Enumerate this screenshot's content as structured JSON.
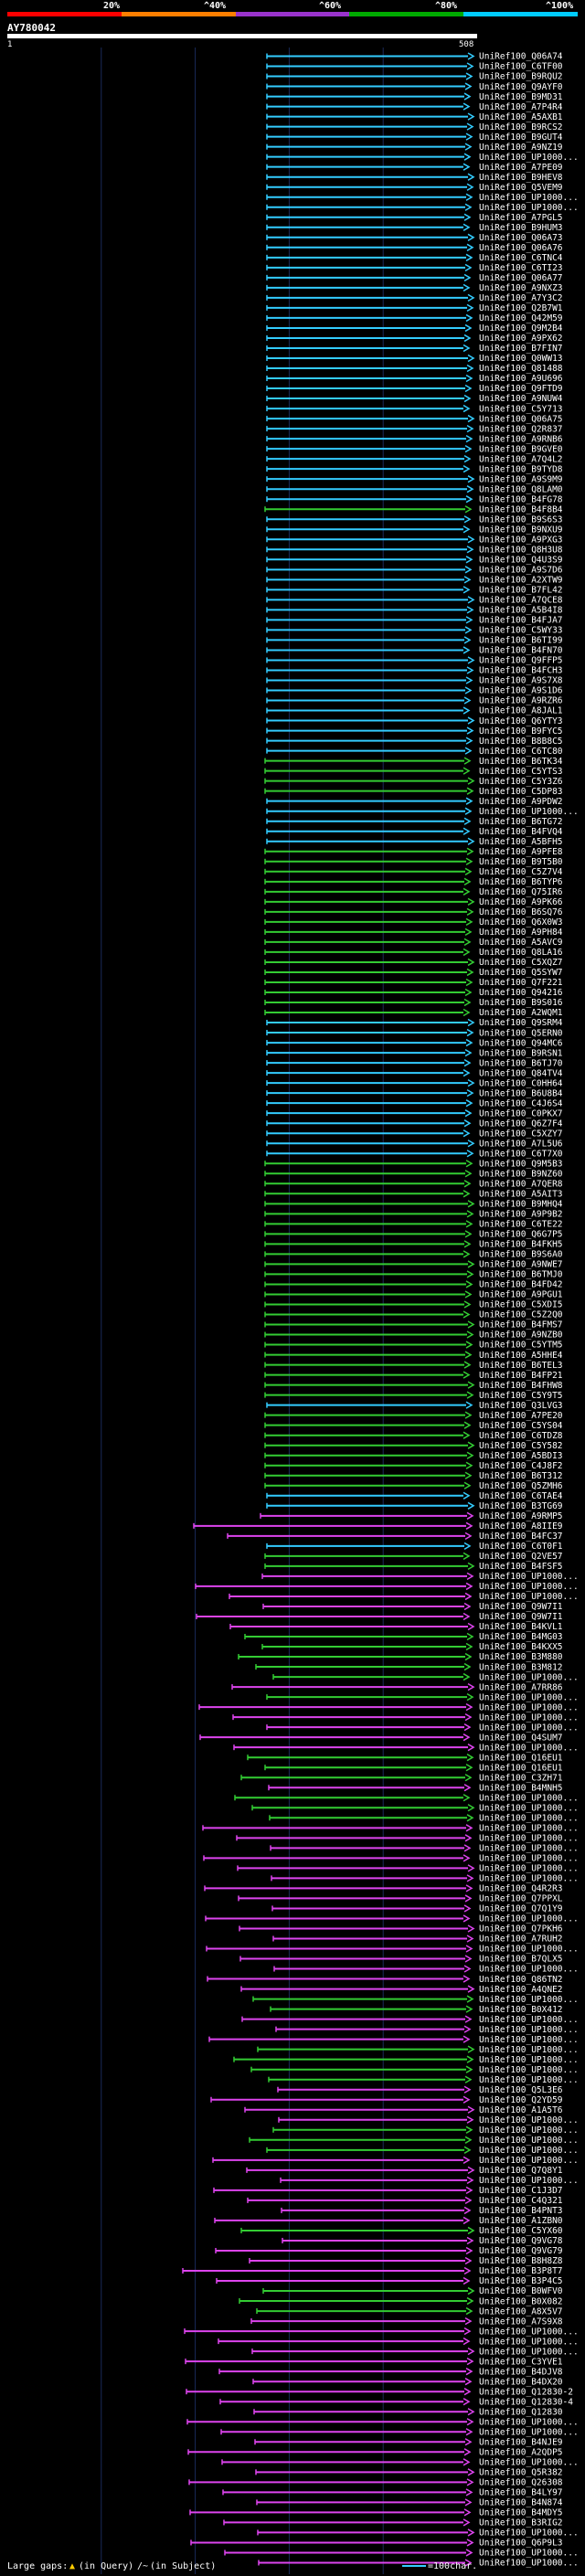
{
  "scale": {
    "labels": [
      "20%",
      "^40%",
      "^60%",
      "^80%",
      "^100%"
    ],
    "colors": [
      "#ff0000",
      "#ff7f00",
      "#9933cc",
      "#00aa00",
      "#00ccff"
    ]
  },
  "query": {
    "id": "AY780042",
    "start": "1",
    "end": "508"
  },
  "colors": {
    "cyan": "#33ccff",
    "green": "#33cc33",
    "magenta": "#dd44ee",
    "background": "#000000",
    "grid": "#1a2a5a"
  },
  "hits": [
    {
      "label": "UniRef100_Q06A74",
      "color": "cyan"
    },
    {
      "label": "UniRef100_C6TF00",
      "color": "cyan"
    },
    {
      "label": "UniRef100_B9RQU2",
      "color": "cyan"
    },
    {
      "label": "UniRef100_Q9AYF0",
      "color": "cyan"
    },
    {
      "label": "UniRef100_B9MD31",
      "color": "cyan"
    },
    {
      "label": "UniRef100_A7P4R4",
      "color": "cyan"
    },
    {
      "label": "UniRef100_A5AXB1",
      "color": "cyan"
    },
    {
      "label": "UniRef100_B9RCS2",
      "color": "cyan"
    },
    {
      "label": "UniRef100_B9GUT4",
      "color": "cyan"
    },
    {
      "label": "UniRef100_A9NZ19",
      "color": "cyan"
    },
    {
      "label": "UniRef100_UP1000...",
      "color": "cyan"
    },
    {
      "label": "UniRef100_A7PE09",
      "color": "cyan"
    },
    {
      "label": "UniRef100_B9HEV8",
      "color": "cyan"
    },
    {
      "label": "UniRef100_Q5VEM9",
      "color": "cyan"
    },
    {
      "label": "UniRef100_UP1000...",
      "color": "cyan"
    },
    {
      "label": "UniRef100_UP1000...",
      "color": "cyan"
    },
    {
      "label": "UniRef100_A7PGL5",
      "color": "cyan"
    },
    {
      "label": "UniRef100_B9HUM3",
      "color": "cyan"
    },
    {
      "label": "UniRef100_Q06A73",
      "color": "cyan"
    },
    {
      "label": "UniRef100_Q06A76",
      "color": "cyan"
    },
    {
      "label": "UniRef100_C6TNC4",
      "color": "cyan"
    },
    {
      "label": "UniRef100_C6TI23",
      "color": "cyan"
    },
    {
      "label": "UniRef100_Q06A77",
      "color": "cyan"
    },
    {
      "label": "UniRef100_A9NXZ3",
      "color": "cyan"
    },
    {
      "label": "UniRef100_A7Y3C2",
      "color": "cyan"
    },
    {
      "label": "UniRef100_Q2B7W1",
      "color": "cyan"
    },
    {
      "label": "UniRef100_Q42M59",
      "color": "cyan"
    },
    {
      "label": "UniRef100_Q9M2B4",
      "color": "cyan"
    },
    {
      "label": "UniRef100_A9PX62",
      "color": "cyan"
    },
    {
      "label": "UniRef100_B7FIN7",
      "color": "cyan"
    },
    {
      "label": "UniRef100_Q0WW13",
      "color": "cyan"
    },
    {
      "label": "UniRef100_Q81488",
      "color": "cyan"
    },
    {
      "label": "UniRef100_A9U696",
      "color": "cyan"
    },
    {
      "label": "UniRef100_Q9FTD9",
      "color": "cyan"
    },
    {
      "label": "UniRef100_A9NUW4",
      "color": "cyan"
    },
    {
      "label": "UniRef100_C5Y713",
      "color": "cyan"
    },
    {
      "label": "UniRef100_Q06A75",
      "color": "cyan"
    },
    {
      "label": "UniRef100_Q2R837",
      "color": "cyan"
    },
    {
      "label": "UniRef100_A9RNB6",
      "color": "cyan"
    },
    {
      "label": "UniRef100_B9GVE0",
      "color": "cyan"
    },
    {
      "label": "UniRef100_A7Q4L2",
      "color": "cyan"
    },
    {
      "label": "UniRef100_B9TYD8",
      "color": "cyan"
    },
    {
      "label": "UniRef100_A9S9M9",
      "color": "cyan"
    },
    {
      "label": "UniRef100_Q8LAM0",
      "color": "cyan"
    },
    {
      "label": "UniRef100_B4FG78",
      "color": "cyan"
    },
    {
      "label": "UniRef100_B4F8B4",
      "color": "green"
    },
    {
      "label": "UniRef100_B9S6S3",
      "color": "cyan"
    },
    {
      "label": "UniRef100_B9NXU9",
      "color": "cyan"
    },
    {
      "label": "UniRef100_A9PXG3",
      "color": "cyan"
    },
    {
      "label": "UniRef100_Q8H3U8",
      "color": "cyan"
    },
    {
      "label": "UniRef100_Q4U3S9",
      "color": "cyan"
    },
    {
      "label": "UniRef100_A9S7D6",
      "color": "cyan"
    },
    {
      "label": "UniRef100_A2XTW9",
      "color": "cyan"
    },
    {
      "label": "UniRef100_B7FL42",
      "color": "cyan"
    },
    {
      "label": "UniRef100_A7QCE8",
      "color": "cyan"
    },
    {
      "label": "UniRef100_A5B4I8",
      "color": "cyan"
    },
    {
      "label": "UniRef100_B4FJA7",
      "color": "cyan"
    },
    {
      "label": "UniRef100_C5WY33",
      "color": "cyan"
    },
    {
      "label": "UniRef100_B6TI99",
      "color": "cyan"
    },
    {
      "label": "UniRef100_B4FN70",
      "color": "cyan"
    },
    {
      "label": "UniRef100_Q9FFP5",
      "color": "cyan"
    },
    {
      "label": "UniRef100_B4FCH3",
      "color": "cyan"
    },
    {
      "label": "UniRef100_A9S7X8",
      "color": "cyan"
    },
    {
      "label": "UniRef100_A9S1D6",
      "color": "cyan"
    },
    {
      "label": "UniRef100_A9RZR6",
      "color": "cyan"
    },
    {
      "label": "UniRef100_A8JAL1",
      "color": "cyan"
    },
    {
      "label": "UniRef100_Q6YTY3",
      "color": "cyan"
    },
    {
      "label": "UniRef100_B9FYC5",
      "color": "cyan"
    },
    {
      "label": "UniRef100_B8B8C5",
      "color": "cyan"
    },
    {
      "label": "UniRef100_C6TC80",
      "color": "cyan"
    },
    {
      "label": "UniRef100_B6TK34",
      "color": "green"
    },
    {
      "label": "UniRef100_C5YTS3",
      "color": "green"
    },
    {
      "label": "UniRef100_C5Y3Z6",
      "color": "green"
    },
    {
      "label": "UniRef100_C5DP83",
      "color": "green"
    },
    {
      "label": "UniRef100_A9PDW2",
      "color": "cyan"
    },
    {
      "label": "UniRef100_UP1000...",
      "color": "cyan"
    },
    {
      "label": "UniRef100_B6TG72",
      "color": "cyan"
    },
    {
      "label": "UniRef100_B4FVQ4",
      "color": "cyan"
    },
    {
      "label": "UniRef100_A5BFH5",
      "color": "cyan"
    },
    {
      "label": "UniRef100_A9PFE8",
      "color": "green"
    },
    {
      "label": "UniRef100_B9T5B0",
      "color": "green"
    },
    {
      "label": "UniRef100_C5Z7V4",
      "color": "green"
    },
    {
      "label": "UniRef100_B6TYP6",
      "color": "green"
    },
    {
      "label": "UniRef100_Q75IR6",
      "color": "green"
    },
    {
      "label": "UniRef100_A9PK66",
      "color": "green"
    },
    {
      "label": "UniRef100_B6SQ76",
      "color": "green"
    },
    {
      "label": "UniRef100_Q6X0W3",
      "color": "green"
    },
    {
      "label": "UniRef100_A9PH84",
      "color": "green"
    },
    {
      "label": "UniRef100_A5AVC9",
      "color": "green"
    },
    {
      "label": "UniRef100_Q8LA16",
      "color": "green"
    },
    {
      "label": "UniRef100_C5XQZ7",
      "color": "green"
    },
    {
      "label": "UniRef100_Q5SYW7",
      "color": "green"
    },
    {
      "label": "UniRef100_Q7F221",
      "color": "green"
    },
    {
      "label": "UniRef100_Q94216",
      "color": "green"
    },
    {
      "label": "UniRef100_B9S016",
      "color": "green"
    },
    {
      "label": "UniRef100_A2WQM1",
      "color": "green"
    },
    {
      "label": "UniRef100_Q9SRM4",
      "color": "cyan"
    },
    {
      "label": "UniRef100_Q5ERN0",
      "color": "cyan"
    },
    {
      "label": "UniRef100_Q94MC6",
      "color": "cyan"
    },
    {
      "label": "UniRef100_B9RSN1",
      "color": "cyan"
    },
    {
      "label": "UniRef100_B6TJ70",
      "color": "cyan"
    },
    {
      "label": "UniRef100_Q84TV4",
      "color": "cyan"
    },
    {
      "label": "UniRef100_C0HH64",
      "color": "cyan"
    },
    {
      "label": "UniRef100_B6U8B4",
      "color": "cyan"
    },
    {
      "label": "UniRef100_C4J6S4",
      "color": "cyan"
    },
    {
      "label": "UniRef100_C0PKX7",
      "color": "cyan"
    },
    {
      "label": "UniRef100_Q6Z7F4",
      "color": "cyan"
    },
    {
      "label": "UniRef100_C5XZY7",
      "color": "cyan"
    },
    {
      "label": "UniRef100_A7L5U6",
      "color": "cyan"
    },
    {
      "label": "UniRef100_C6T7X0",
      "color": "cyan"
    },
    {
      "label": "UniRef100_Q9M5B3",
      "color": "green"
    },
    {
      "label": "UniRef100_B9NZ60",
      "color": "green"
    },
    {
      "label": "UniRef100_A7QER8",
      "color": "green"
    },
    {
      "label": "UniRef100_A5AIT3",
      "color": "green"
    },
    {
      "label": "UniRef100_B9MHQ4",
      "color": "green"
    },
    {
      "label": "UniRef100_A9P9B2",
      "color": "green"
    },
    {
      "label": "UniRef100_C6TE22",
      "color": "green"
    },
    {
      "label": "UniRef100_Q6G7P5",
      "color": "green"
    },
    {
      "label": "UniRef100_B4FKH5",
      "color": "green"
    },
    {
      "label": "UniRef100_B9S6A0",
      "color": "green"
    },
    {
      "label": "UniRef100_A9NWE7",
      "color": "green"
    },
    {
      "label": "UniRef100_B6TMJ0",
      "color": "green"
    },
    {
      "label": "UniRef100_B4FD42",
      "color": "green"
    },
    {
      "label": "UniRef100_A9PGU1",
      "color": "green"
    },
    {
      "label": "UniRef100_C5XDI5",
      "color": "green"
    },
    {
      "label": "UniRef100_C5Z2Q0",
      "color": "green"
    },
    {
      "label": "UniRef100_B4FMS7",
      "color": "green"
    },
    {
      "label": "UniRef100_A9NZB0",
      "color": "green"
    },
    {
      "label": "UniRef100_C5YTM5",
      "color": "green"
    },
    {
      "label": "UniRef100_A5HHE4",
      "color": "green"
    },
    {
      "label": "UniRef100_B6TEL3",
      "color": "green"
    },
    {
      "label": "UniRef100_B4FP21",
      "color": "green"
    },
    {
      "label": "UniRef100_B4FHW8",
      "color": "green"
    },
    {
      "label": "UniRef100_C5Y9T5",
      "color": "green"
    },
    {
      "label": "UniRef100_Q3LVG3",
      "color": "cyan"
    },
    {
      "label": "UniRef100_A7PE20",
      "color": "green"
    },
    {
      "label": "UniRef100_C5YS04",
      "color": "green"
    },
    {
      "label": "UniRef100_C6TDZ8",
      "color": "green"
    },
    {
      "label": "UniRef100_C5Y582",
      "color": "green"
    },
    {
      "label": "UniRef100_A5BDI3",
      "color": "green"
    },
    {
      "label": "UniRef100_C4J8F2",
      "color": "green"
    },
    {
      "label": "UniRef100_B6T312",
      "color": "green"
    },
    {
      "label": "UniRef100_Q5ZMH6",
      "color": "green"
    },
    {
      "label": "UniRef100_C6TAE4",
      "color": "cyan"
    },
    {
      "label": "UniRef100_B3TG69",
      "color": "cyan"
    },
    {
      "label": "UniRef100_A9RMP5",
      "color": "magenta"
    },
    {
      "label": "UniRef100_A8IIE9",
      "color": "magenta"
    },
    {
      "label": "UniRef100_B4FC37",
      "color": "magenta"
    },
    {
      "label": "UniRef100_C6T0F1",
      "color": "cyan"
    },
    {
      "label": "UniRef100_Q2VE57",
      "color": "green"
    },
    {
      "label": "UniRef100_B4FSF5",
      "color": "green"
    },
    {
      "label": "UniRef100_UP1000...",
      "color": "magenta"
    },
    {
      "label": "UniRef100_UP1000...",
      "color": "magenta"
    },
    {
      "label": "UniRef100_UP1000...",
      "color": "magenta"
    },
    {
      "label": "UniRef100_Q9W7I1",
      "color": "magenta"
    },
    {
      "label": "UniRef100_Q9W7I1",
      "color": "magenta"
    },
    {
      "label": "UniRef100_B4KVL1",
      "color": "magenta"
    },
    {
      "label": "UniRef100_B4MG03",
      "color": "green"
    },
    {
      "label": "UniRef100_B4KXX5",
      "color": "green"
    },
    {
      "label": "UniRef100_B3M880",
      "color": "green"
    },
    {
      "label": "UniRef100_B3M812",
      "color": "green"
    },
    {
      "label": "UniRef100_UP1000...",
      "color": "green"
    },
    {
      "label": "UniRef100_A7RR86",
      "color": "magenta"
    },
    {
      "label": "UniRef100_UP1000...",
      "color": "green"
    },
    {
      "label": "UniRef100_UP1000...",
      "color": "magenta"
    },
    {
      "label": "UniRef100_UP1000...",
      "color": "magenta"
    },
    {
      "label": "UniRef100_UP1000...",
      "color": "magenta"
    },
    {
      "label": "UniRef100_Q4SUM7",
      "color": "magenta"
    },
    {
      "label": "UniRef100_UP1000...",
      "color": "magenta"
    },
    {
      "label": "UniRef100_Q16EU1",
      "color": "green"
    },
    {
      "label": "UniRef100_Q16EU1",
      "color": "green"
    },
    {
      "label": "UniRef100_C3ZH71",
      "color": "green"
    },
    {
      "label": "UniRef100_B4MNH5",
      "color": "magenta"
    },
    {
      "label": "UniRef100_UP1000...",
      "color": "green"
    },
    {
      "label": "UniRef100_UP1000...",
      "color": "green"
    },
    {
      "label": "UniRef100_UP1000...",
      "color": "green"
    },
    {
      "label": "UniRef100_UP1000...",
      "color": "magenta"
    },
    {
      "label": "UniRef100_UP1000...",
      "color": "magenta"
    },
    {
      "label": "UniRef100_UP1000...",
      "color": "magenta"
    },
    {
      "label": "UniRef100_UP1000...",
      "color": "magenta"
    },
    {
      "label": "UniRef100_UP1000...",
      "color": "magenta"
    },
    {
      "label": "UniRef100_UP1000...",
      "color": "magenta"
    },
    {
      "label": "UniRef100_Q4R2R3",
      "color": "magenta"
    },
    {
      "label": "UniRef100_Q7PPXL",
      "color": "magenta"
    },
    {
      "label": "UniRef100_Q7Q1Y9",
      "color": "magenta"
    },
    {
      "label": "UniRef100_UP1000...",
      "color": "magenta"
    },
    {
      "label": "UniRef100_Q7PKH6",
      "color": "magenta"
    },
    {
      "label": "UniRef100_A7RUH2",
      "color": "magenta"
    },
    {
      "label": "UniRef100_UP1000...",
      "color": "magenta"
    },
    {
      "label": "UniRef100_B7QLX5",
      "color": "magenta"
    },
    {
      "label": "UniRef100_UP1000...",
      "color": "magenta"
    },
    {
      "label": "UniRef100_Q86TN2",
      "color": "magenta"
    },
    {
      "label": "UniRef100_A4QNE2",
      "color": "magenta"
    },
    {
      "label": "UniRef100_UP1000...",
      "color": "green"
    },
    {
      "label": "UniRef100_B0X412",
      "color": "green"
    },
    {
      "label": "UniRef100_UP1000...",
      "color": "magenta"
    },
    {
      "label": "UniRef100_UP1000...",
      "color": "magenta"
    },
    {
      "label": "UniRef100_UP1000...",
      "color": "magenta"
    },
    {
      "label": "UniRef100_UP1000...",
      "color": "green"
    },
    {
      "label": "UniRef100_UP1000...",
      "color": "green"
    },
    {
      "label": "UniRef100_UP1000...",
      "color": "green"
    },
    {
      "label": "UniRef100_UP1000...",
      "color": "green"
    },
    {
      "label": "UniRef100_Q5L3E6",
      "color": "magenta"
    },
    {
      "label": "UniRef100_Q2YD59",
      "color": "magenta"
    },
    {
      "label": "UniRef100_A1A5T6",
      "color": "magenta"
    },
    {
      "label": "UniRef100_UP1000...",
      "color": "magenta"
    },
    {
      "label": "UniRef100_UP1000...",
      "color": "green"
    },
    {
      "label": "UniRef100_UP1000...",
      "color": "green"
    },
    {
      "label": "UniRef100_UP1000...",
      "color": "green"
    },
    {
      "label": "UniRef100_UP1000...",
      "color": "magenta"
    },
    {
      "label": "UniRef100_Q7Q8Y1",
      "color": "magenta"
    },
    {
      "label": "UniRef100_UP1000...",
      "color": "magenta"
    },
    {
      "label": "UniRef100_C1J3D7",
      "color": "magenta"
    },
    {
      "label": "UniRef100_C4Q321",
      "color": "magenta"
    },
    {
      "label": "UniRef100_B4PNT3",
      "color": "magenta"
    },
    {
      "label": "UniRef100_A1ZBN0",
      "color": "magenta"
    },
    {
      "label": "UniRef100_C5YX60",
      "color": "green"
    },
    {
      "label": "UniRef100_Q9VG78",
      "color": "magenta"
    },
    {
      "label": "UniRef100_Q9VG79",
      "color": "magenta"
    },
    {
      "label": "UniRef100_B8H8Z8",
      "color": "magenta"
    },
    {
      "label": "UniRef100_B3P8T7",
      "color": "magenta"
    },
    {
      "label": "UniRef100_B3P4C5",
      "color": "magenta"
    },
    {
      "label": "UniRef100_B0WFV0",
      "color": "green"
    },
    {
      "label": "UniRef100_B0X082",
      "color": "green"
    },
    {
      "label": "UniRef100_A8X5V7",
      "color": "green"
    },
    {
      "label": "UniRef100_A7S9X8",
      "color": "magenta"
    },
    {
      "label": "UniRef100_UP1000...",
      "color": "magenta"
    },
    {
      "label": "UniRef100_UP1000...",
      "color": "magenta"
    },
    {
      "label": "UniRef100_UP1000...",
      "color": "magenta"
    },
    {
      "label": "UniRef100_C3YVE1",
      "color": "magenta"
    },
    {
      "label": "UniRef100_B4DJV8",
      "color": "magenta"
    },
    {
      "label": "UniRef100_B4DX20",
      "color": "magenta"
    },
    {
      "label": "UniRef100_Q12830-2",
      "color": "magenta"
    },
    {
      "label": "UniRef100_Q12830-4",
      "color": "magenta"
    },
    {
      "label": "UniRef100_Q12830",
      "color": "magenta"
    },
    {
      "label": "UniRef100_UP1000...",
      "color": "magenta"
    },
    {
      "label": "UniRef100_UP1000...",
      "color": "magenta"
    },
    {
      "label": "UniRef100_B4NJE9",
      "color": "magenta"
    },
    {
      "label": "UniRef100_A2QDP5",
      "color": "magenta"
    },
    {
      "label": "UniRef100_UP1000...",
      "color": "magenta"
    },
    {
      "label": "UniRef100_Q5R382",
      "color": "magenta"
    },
    {
      "label": "UniRef100_Q26308",
      "color": "magenta"
    },
    {
      "label": "UniRef100_B4LY97",
      "color": "magenta"
    },
    {
      "label": "UniRef100_B4N874",
      "color": "magenta"
    },
    {
      "label": "UniRef100_B4MDY5",
      "color": "magenta"
    },
    {
      "label": "UniRef100_B3RIG2",
      "color": "magenta"
    },
    {
      "label": "UniRef100_UP1000...",
      "color": "magenta"
    },
    {
      "label": "UniRef100_Q6P9L3",
      "color": "magenta"
    },
    {
      "label": "UniRef100_UP1000...",
      "color": "magenta"
    },
    {
      "label": "UniRef100_UP1000...",
      "color": "magenta"
    }
  ],
  "legend": {
    "large_gaps": "Large gaps:",
    "in_query": "(in Query)",
    "in_subject": "(in Subject)",
    "scale": "=100char."
  }
}
